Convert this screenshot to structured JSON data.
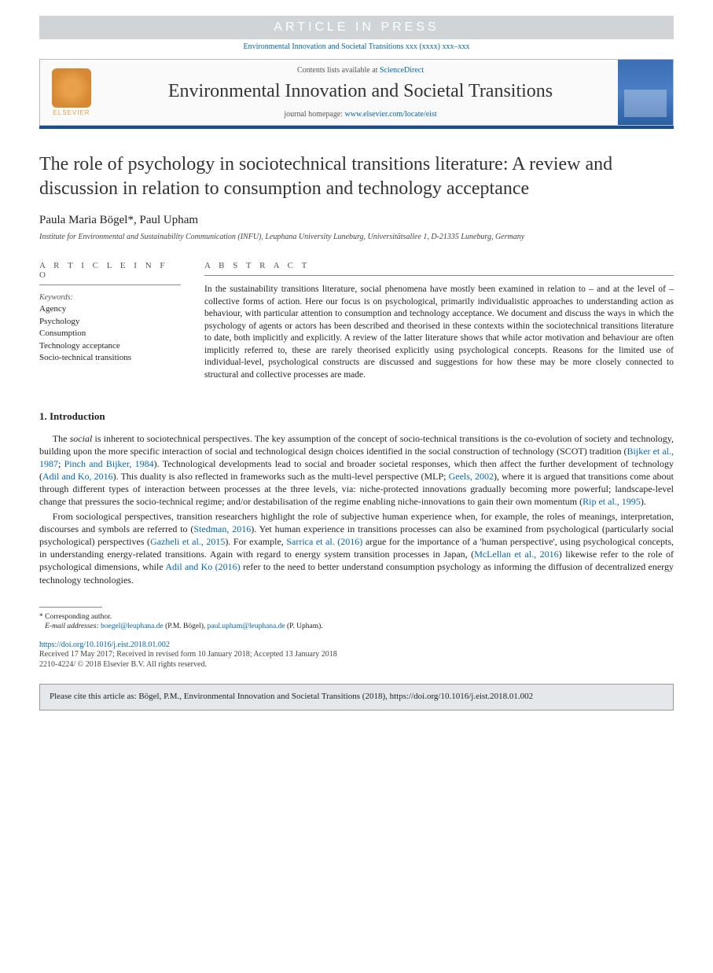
{
  "banner": "ARTICLE IN PRESS",
  "citation_header": "Environmental Innovation and Societal Transitions xxx (xxxx) xxx–xxx",
  "header": {
    "contents_pre": "Contents lists available at ",
    "contents_link": "ScienceDirect",
    "journal": "Environmental Innovation and Societal Transitions",
    "homepage_pre": "journal homepage: ",
    "homepage_url": "www.elsevier.com/locate/eist",
    "elsevier": "ELSEVIER"
  },
  "title": "The role of psychology in sociotechnical transitions literature: A review and discussion in relation to consumption and technology acceptance",
  "authors_html": "Paula Maria Bögel*, Paul Upham",
  "affiliation": "Institute for Environmental and Sustainability Communication (INFU), Leuphana University Luneburg, Universitätsallee 1, D-21335 Luneburg, Germany",
  "labels": {
    "article_info": "A R T I C L E  I N F O",
    "abstract": "A B S T R A C T",
    "keywords": "Keywords:"
  },
  "keywords": [
    "Agency",
    "Psychology",
    "Consumption",
    "Technology acceptance",
    "Socio-technical transitions"
  ],
  "abstract": "In the sustainability transitions literature, social phenomena have mostly been examined in relation to – and at the level of – collective forms of action. Here our focus is on psychological, primarily individualistic approaches to understanding action as behaviour, with particular attention to consumption and technology acceptance. We document and discuss the ways in which the psychology of agents or actors has been described and theorised in these contexts within the sociotechnical transitions literature to date, both implicitly and explicitly. A review of the latter literature shows that while actor motivation and behaviour are often implicitly referred to, these are rarely theorised explicitly using psychological concepts. Reasons for the limited use of individual-level, psychological constructs are discussed and suggestions for how these may be more closely connected to structural and collective processes are made.",
  "section1": {
    "heading": "1. Introduction",
    "p1_a": "The ",
    "p1_em": "social",
    "p1_b": " is inherent to sociotechnical perspectives. The key assumption of the concept of socio-technical transitions is the co-evolution of society and technology, building upon the more specific interaction of social and technological design choices identified in the social construction of technology (SCOT) tradition (",
    "p1_ref1": "Bijker et al., 1987",
    "p1_c": "; ",
    "p1_ref2": "Pinch and Bijker, 1984",
    "p1_d": "). Technological developments lead to social and broader societal responses, which then affect the further development of technology (",
    "p1_ref3": "Adil and Ko, 2016",
    "p1_e": "). This duality is also reflected in frameworks such as the multi-level perspective (MLP; ",
    "p1_ref4": "Geels, 2002",
    "p1_f": "), where it is argued that transitions come about through different types of interaction between processes at the three levels, via: niche-protected innovations gradually becoming more powerful; landscape-level change that pressures the socio-technical regime; and/or destabilisation of the regime enabling niche-innovations to gain their own momentum (",
    "p1_ref5": "Rip et al., 1995",
    "p1_g": ").",
    "p2_a": "From sociological perspectives, transition researchers highlight the role of subjective human experience when, for example, the roles of meanings, interpretation, discourses and symbols are referred to (",
    "p2_ref1": "Stedman, 2016",
    "p2_b": "). Yet human experience in transitions processes can also be examined from psychological (particularly social psychological) perspectives (",
    "p2_ref2": "Gazheli et al., 2015",
    "p2_c": "). For example, ",
    "p2_ref3": "Sarrica et al. (2016)",
    "p2_d": " argue for the importance of a 'human perspective', using psychological concepts, in understanding energy-related transitions. Again with regard to energy system transition processes in Japan, (",
    "p2_ref4": "McLellan et al., 2016",
    "p2_e": ") likewise refer to the role of psychological dimensions, while ",
    "p2_ref5": "Adil and Ko (2016)",
    "p2_f": " refer to the need to better understand consumption psychology as informing the diffusion of decentralized energy technology technologies."
  },
  "footnote": {
    "corr": "* Corresponding author.",
    "email_label": "E-mail addresses:",
    "email1": "boegel@leuphana.de",
    "name1": " (P.M. Bögel), ",
    "email2": "paul.upham@leuphana.de",
    "name2": " (P. Upham)."
  },
  "doi": "https://doi.org/10.1016/j.eist.2018.01.002",
  "history": "Received 17 May 2017; Received in revised form 10 January 2018; Accepted 13 January 2018",
  "copyright": "2210-4224/ © 2018 Elsevier B.V. All rights reserved.",
  "cite_box": "Please cite this article as: Bögel, P.M., Environmental Innovation and Societal Transitions (2018), https://doi.org/10.1016/j.eist.2018.01.002"
}
